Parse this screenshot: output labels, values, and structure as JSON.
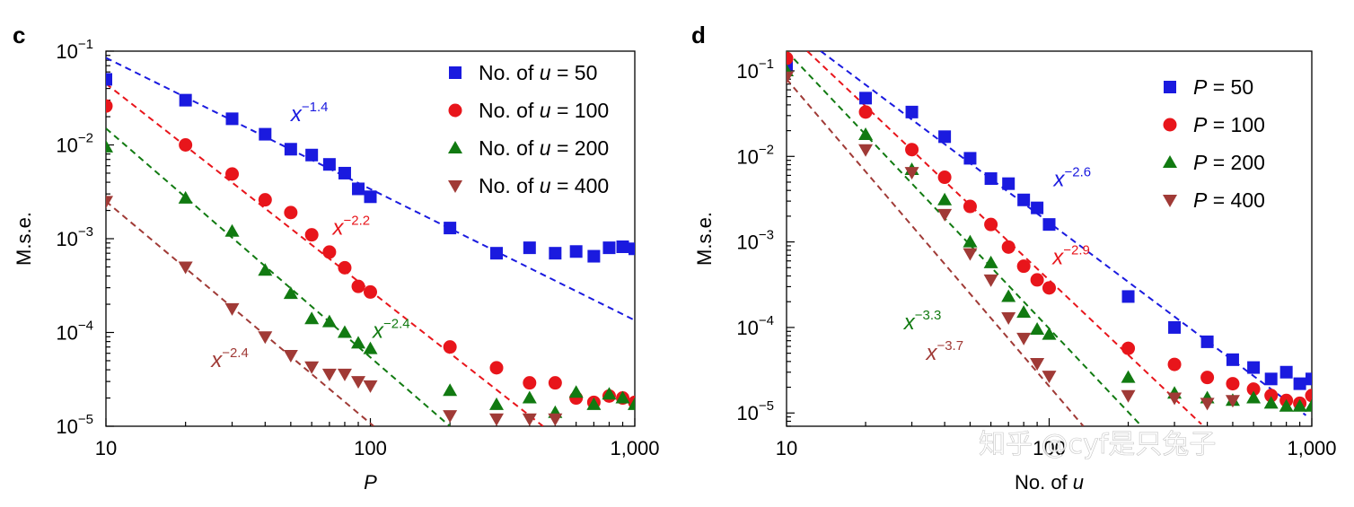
{
  "watermark": "知乎 @cyf是只兔子",
  "chart_data": [
    {
      "panel": "c",
      "type": "scatter",
      "xscale": "log",
      "yscale": "log",
      "xlim": [
        10,
        1000
      ],
      "ylim": [
        1e-05,
        0.1
      ],
      "xticks": [
        {
          "v": 10,
          "label": "10"
        },
        {
          "v": 100,
          "label": "100"
        },
        {
          "v": 1000,
          "label": "1,000"
        }
      ],
      "yticks": [
        {
          "v": 0.1,
          "base": "10",
          "exp": "−1"
        },
        {
          "v": 0.01,
          "base": "10",
          "exp": "−2"
        },
        {
          "v": 0.001,
          "base": "10",
          "exp": "−3"
        },
        {
          "v": 0.0001,
          "base": "10",
          "exp": "−4"
        },
        {
          "v": 1e-05,
          "base": "10",
          "exp": "−5"
        }
      ],
      "xlabel": "P",
      "ylabel": "M.s.e.",
      "legend_position": "top-right",
      "series": [
        {
          "name": "No. of u = 50",
          "prefix": "No. of ",
          "var": "u",
          "suffix": " = 50",
          "color": "#1a1adf",
          "marker": "square",
          "x": [
            10,
            20,
            30,
            40,
            50,
            60,
            70,
            80,
            90,
            100,
            200,
            300,
            400,
            500,
            600,
            700,
            800,
            900,
            1000
          ],
          "y": [
            0.05,
            0.03,
            0.019,
            0.013,
            0.009,
            0.0078,
            0.0062,
            0.005,
            0.0034,
            0.0028,
            0.0013,
            0.0007,
            0.0008,
            0.0007,
            0.00073,
            0.00065,
            0.0008,
            0.00082,
            0.00078
          ]
        },
        {
          "name": "No. of u = 100",
          "prefix": "No. of ",
          "var": "u",
          "suffix": " = 100",
          "color": "#e8151b",
          "marker": "circle",
          "x": [
            10,
            20,
            30,
            40,
            50,
            60,
            70,
            80,
            90,
            100,
            200,
            300,
            400,
            500,
            600,
            700,
            800,
            900,
            1000
          ],
          "y": [
            0.026,
            0.01,
            0.0049,
            0.0026,
            0.0019,
            0.0011,
            0.00072,
            0.00049,
            0.00031,
            0.00027,
            7e-05,
            4.2e-05,
            2.9e-05,
            2.9e-05,
            2e-05,
            1.8e-05,
            2.1e-05,
            2e-05,
            1.8e-05
          ]
        },
        {
          "name": "No. of u = 200",
          "prefix": "No. of ",
          "var": "u",
          "suffix": " = 200",
          "color": "#117a11",
          "marker": "triangle-up",
          "x": [
            10,
            20,
            30,
            40,
            50,
            60,
            70,
            80,
            90,
            100,
            200,
            300,
            400,
            500,
            600,
            700,
            800,
            900,
            1000
          ],
          "y": [
            0.0095,
            0.0027,
            0.0012,
            0.00046,
            0.00026,
            0.00014,
            0.00013,
            0.0001,
            7.7e-05,
            6.7e-05,
            2.4e-05,
            1.7e-05,
            2e-05,
            1.4e-05,
            2.3e-05,
            1.7e-05,
            2.2e-05,
            2e-05,
            1.7e-05
          ]
        },
        {
          "name": "No. of u = 400",
          "prefix": "No. of ",
          "var": "u",
          "suffix": " = 400",
          "color": "#a03a36",
          "marker": "triangle-down",
          "x": [
            10,
            20,
            30,
            40,
            50,
            60,
            70,
            80,
            90,
            100,
            200,
            300,
            400,
            500
          ],
          "y": [
            0.0025,
            0.0005,
            0.00018,
            9e-05,
            5.7e-05,
            4.3e-05,
            3.6e-05,
            3.6e-05,
            3e-05,
            2.7e-05,
            1.3e-05,
            1.2e-05,
            1.2e-05,
            1.2e-05
          ]
        }
      ],
      "fits": [
        {
          "color": "#1a1adf",
          "x": [
            10,
            1000
          ],
          "y": [
            0.085,
            0.000135
          ]
        },
        {
          "color": "#e8151b",
          "x": [
            10,
            450
          ],
          "y": [
            0.045,
            1e-05
          ]
        },
        {
          "color": "#117a11",
          "x": [
            10,
            200
          ],
          "y": [
            0.015,
            1e-05
          ]
        },
        {
          "color": "#a03a36",
          "x": [
            10,
            103
          ],
          "y": [
            0.0025,
            1e-05
          ]
        }
      ],
      "annotations": [
        {
          "base": "x",
          "exp": "−1.4",
          "color": "#1a1adf",
          "x": 50,
          "y": 0.018
        },
        {
          "base": "x",
          "exp": "−2.2",
          "color": "#e8151b",
          "x": 72,
          "y": 0.0011
        },
        {
          "base": "x",
          "exp": "−2.4",
          "color": "#117a11",
          "x": 102,
          "y": 8.8e-05
        },
        {
          "base": "x",
          "exp": "−2.4",
          "color": "#a03a36",
          "x": 25,
          "y": 4.3e-05
        }
      ]
    },
    {
      "panel": "d",
      "type": "scatter",
      "xscale": "log",
      "yscale": "log",
      "xlim": [
        10,
        1000
      ],
      "ylim": [
        7e-06,
        0.17
      ],
      "xticks": [
        {
          "v": 10,
          "label": "10"
        },
        {
          "v": 100,
          "label": "100"
        },
        {
          "v": 1000,
          "label": "1,000"
        }
      ],
      "yticks": [
        {
          "v": 0.1,
          "base": "10",
          "exp": "−1"
        },
        {
          "v": 0.01,
          "base": "10",
          "exp": "−2"
        },
        {
          "v": 0.001,
          "base": "10",
          "exp": "−3"
        },
        {
          "v": 0.0001,
          "base": "10",
          "exp": "−4"
        },
        {
          "v": 1e-05,
          "base": "10",
          "exp": "−5"
        }
      ],
      "xlabel": "No. of u",
      "ylabel": "M.s.e.",
      "legend_position": "top-right",
      "series": [
        {
          "name": "P = 50",
          "prefix": "",
          "var": "P",
          "suffix": " = 50",
          "color": "#1a1adf",
          "marker": "square",
          "x": [
            10,
            20,
            30,
            40,
            50,
            60,
            70,
            80,
            90,
            100,
            200,
            300,
            400,
            500,
            600,
            700,
            800,
            900,
            1000
          ],
          "y": [
            0.12,
            0.048,
            0.033,
            0.017,
            0.0095,
            0.0055,
            0.0048,
            0.0031,
            0.0025,
            0.0016,
            0.00023,
            0.0001,
            6.8e-05,
            4.2e-05,
            3.4e-05,
            2.5e-05,
            3e-05,
            2.2e-05,
            2.5e-05
          ]
        },
        {
          "name": "P = 100",
          "prefix": "",
          "var": "P",
          "suffix": " = 100",
          "color": "#e8151b",
          "marker": "circle",
          "x": [
            10,
            20,
            30,
            40,
            50,
            60,
            70,
            80,
            90,
            100,
            200,
            300,
            400,
            500,
            600,
            700,
            800,
            900,
            1000
          ],
          "y": [
            0.14,
            0.033,
            0.012,
            0.0057,
            0.0026,
            0.0016,
            0.00087,
            0.00052,
            0.00036,
            0.00029,
            5.7e-05,
            3.7e-05,
            2.6e-05,
            2.2e-05,
            1.9e-05,
            1.6e-05,
            1.4e-05,
            1.3e-05,
            1.6e-05
          ]
        },
        {
          "name": "P = 200",
          "prefix": "",
          "var": "P",
          "suffix": " = 200",
          "color": "#117a11",
          "marker": "triangle-up",
          "x": [
            10,
            20,
            30,
            40,
            50,
            60,
            70,
            80,
            90,
            100,
            200,
            300,
            400,
            500,
            600,
            700,
            800,
            900,
            1000
          ],
          "y": [
            0.1,
            0.018,
            0.007,
            0.0031,
            0.001,
            0.00057,
            0.00023,
            0.00015,
            9.5e-05,
            8.3e-05,
            2.6e-05,
            1.7e-05,
            1.5e-05,
            1.4e-05,
            1.5e-05,
            1.3e-05,
            1.2e-05,
            1.2e-05,
            1.2e-05
          ]
        },
        {
          "name": "P = 400",
          "prefix": "",
          "var": "P",
          "suffix": " = 400",
          "color": "#a03a36",
          "marker": "triangle-down",
          "x": [
            10,
            20,
            30,
            40,
            50,
            60,
            70,
            80,
            90,
            100,
            200,
            300,
            400,
            500
          ],
          "y": [
            0.085,
            0.012,
            0.0065,
            0.0021,
            0.00073,
            0.00036,
            0.00013,
            7.5e-05,
            3.8e-05,
            2.7e-05,
            1.6e-05,
            1.5e-05,
            1.3e-05,
            1.4e-05
          ]
        }
      ],
      "fits": [
        {
          "color": "#1a1adf",
          "x": [
            13.5,
            950
          ],
          "y": [
            0.17,
            9.4e-06
          ]
        },
        {
          "color": "#e8151b",
          "x": [
            12,
            380
          ],
          "y": [
            0.17,
            7.4e-06
          ]
        },
        {
          "color": "#117a11",
          "x": [
            10,
            225
          ],
          "y": [
            0.17,
            7e-06
          ]
        },
        {
          "color": "#a03a36",
          "x": [
            10,
            135
          ],
          "y": [
            0.08,
            7e-06
          ]
        }
      ],
      "annotations": [
        {
          "base": "x",
          "exp": "−2.6",
          "color": "#1a1adf",
          "x": 104,
          "y": 0.0045
        },
        {
          "base": "x",
          "exp": "−2.9",
          "color": "#e8151b",
          "x": 103,
          "y": 0.00055
        },
        {
          "base": "x",
          "exp": "−3.3",
          "color": "#117a11",
          "x": 28,
          "y": 9.5e-05
        },
        {
          "base": "x",
          "exp": "−3.7",
          "color": "#a03a36",
          "x": 34,
          "y": 4.2e-05
        }
      ]
    }
  ]
}
